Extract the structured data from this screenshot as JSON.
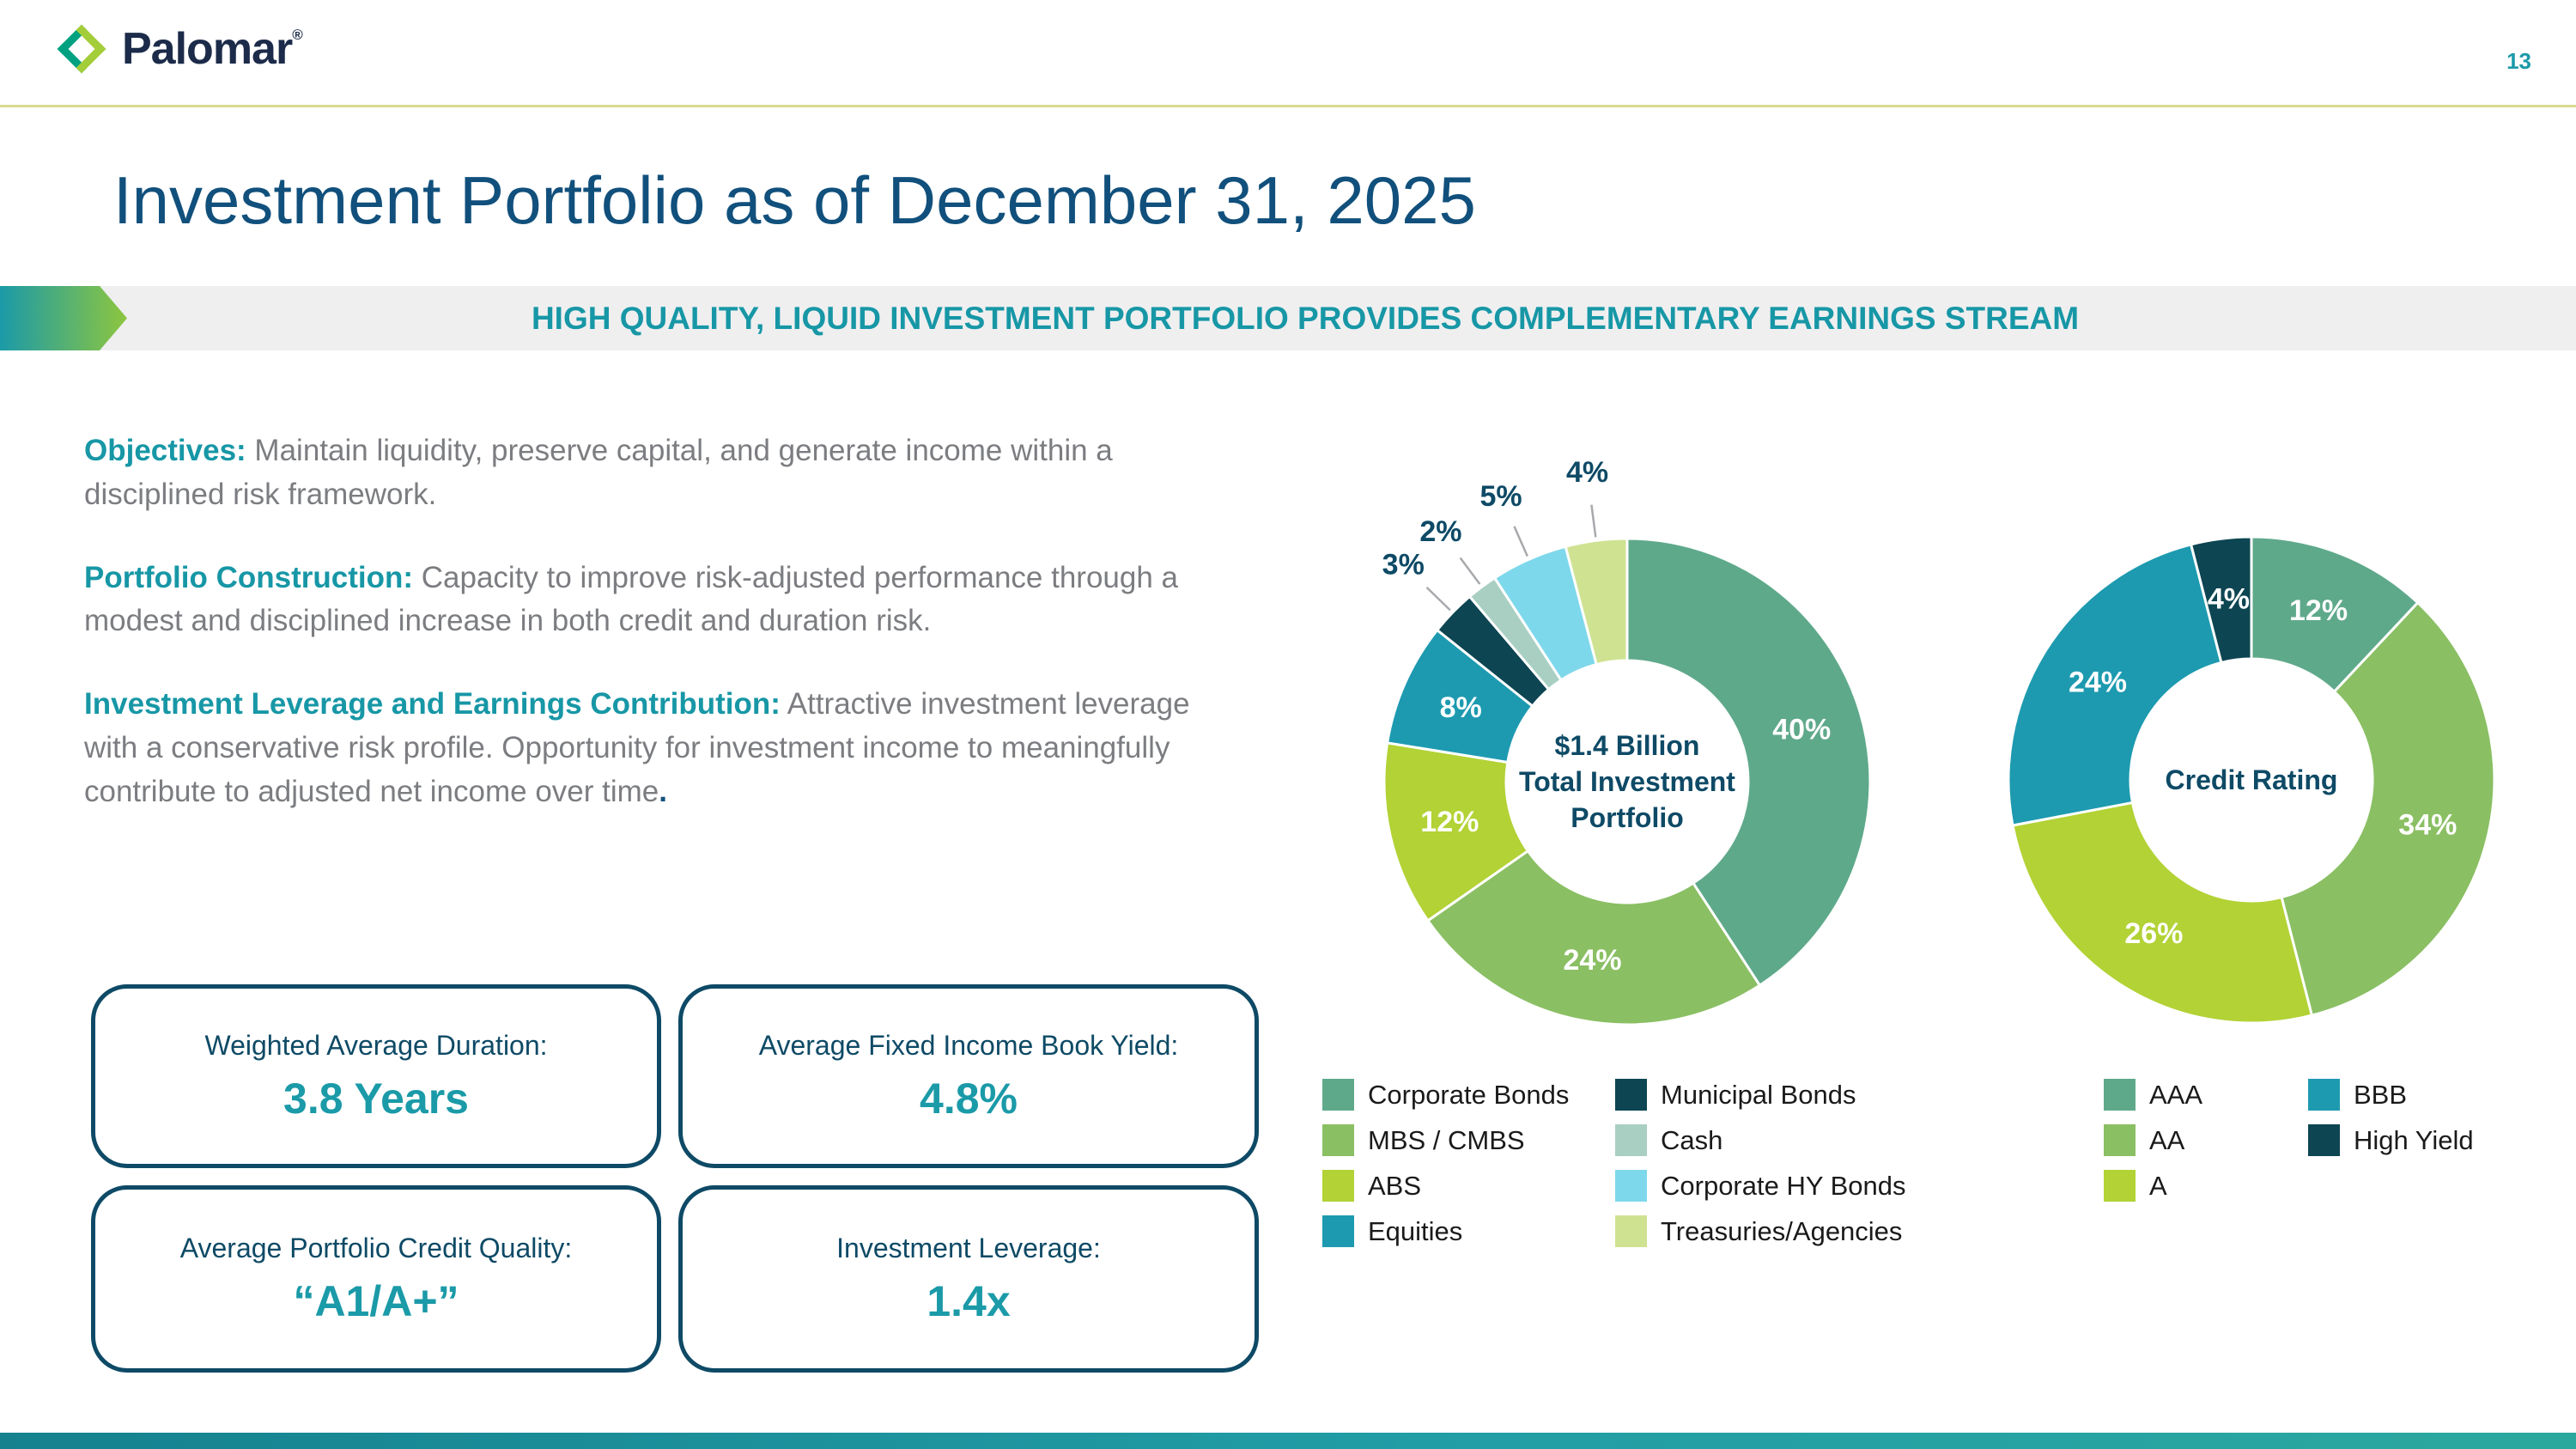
{
  "page": {
    "brand": "Palomar",
    "brand_mark": "®",
    "number": "13",
    "title": "Investment Portfolio as of December 31, 2025",
    "banner": "HIGH QUALITY, LIQUID INVESTMENT PORTFOLIO PROVIDES COMPLEMENTARY EARNINGS STREAM"
  },
  "paragraphs": [
    {
      "lead": "Objectives:",
      "text": " Maintain liquidity, preserve capital, and generate income within a disciplined risk framework.",
      "tail": ""
    },
    {
      "lead": "Portfolio Construction:",
      "text": " Capacity to improve risk-adjusted performance through a modest and disciplined increase in both credit and duration risk.",
      "tail": ""
    },
    {
      "lead": "Investment Leverage and Earnings Contribution:",
      "text": " Attractive investment leverage with a conservative risk profile. Opportunity for investment income to meaningfully contribute to adjusted net income over time",
      "tail": "."
    }
  ],
  "stats": [
    {
      "label": "Weighted Average Duration:",
      "value": "3.8 Years"
    },
    {
      "label": "Average Fixed Income Book Yield:",
      "value": "4.8%"
    },
    {
      "label": "Average Portfolio Credit Quality:",
      "value": "“A1/A+”"
    },
    {
      "label": "Investment Leverage:",
      "value": "1.4x"
    }
  ],
  "chart_data": [
    {
      "type": "pie",
      "subtype": "donut",
      "title": "$1.4 Billion Total Investment Portfolio",
      "center_lines": [
        "$1.4 Billion",
        "Total Investment",
        "Portfolio"
      ],
      "segments": [
        {
          "label": "Corporate Bonds",
          "value": 40,
          "color": "#5fa98b",
          "label_pos": "inside"
        },
        {
          "label": "MBS / CMBS",
          "value": 24,
          "color": "#8abf63",
          "label_pos": "inside"
        },
        {
          "label": "ABS",
          "value": 12,
          "color": "#b2d235",
          "label_pos": "inside"
        },
        {
          "label": "Equities",
          "value": 8,
          "color": "#1d9ab0",
          "label_pos": "inside"
        },
        {
          "label": "Municipal Bonds",
          "value": 3,
          "color": "#0d4552",
          "label_pos": "outside"
        },
        {
          "label": "Cash",
          "value": 2,
          "color": "#a9cfc3",
          "label_pos": "outside"
        },
        {
          "label": "Corporate HY Bonds",
          "value": 5,
          "color": "#7ed8eb",
          "label_pos": "outside"
        },
        {
          "label": "Treasuries/Agencies",
          "value": 4,
          "color": "#cfe292",
          "label_pos": "outside"
        }
      ],
      "legend_columns": [
        [
          0,
          1,
          2,
          3
        ],
        [
          4,
          5,
          6,
          7
        ]
      ]
    },
    {
      "type": "pie",
      "subtype": "donut",
      "title": "Credit Rating",
      "center_lines": [
        "Credit Rating"
      ],
      "segments": [
        {
          "label": "AAA",
          "value": 12,
          "color": "#5fa98b",
          "label_pos": "inside"
        },
        {
          "label": "AA",
          "value": 34,
          "color": "#8abf63",
          "label_pos": "inside"
        },
        {
          "label": "A",
          "value": 26,
          "color": "#b2d235",
          "label_pos": "inside"
        },
        {
          "label": "BBB",
          "value": 24,
          "color": "#1d9ab0",
          "label_pos": "inside"
        },
        {
          "label": "High Yield",
          "value": 4,
          "color": "#0d4552",
          "label_pos": "inside"
        }
      ],
      "legend_columns": [
        [
          0,
          1,
          2
        ],
        [
          3,
          4
        ]
      ]
    }
  ],
  "colors": {
    "navy": "#0e4a66",
    "title_blue": "#11507c",
    "teal_accent": "#1b9aa8",
    "body_gray": "#7b7d80",
    "header_rule": "#d9da8e",
    "banner_bg": "#efeff0"
  }
}
